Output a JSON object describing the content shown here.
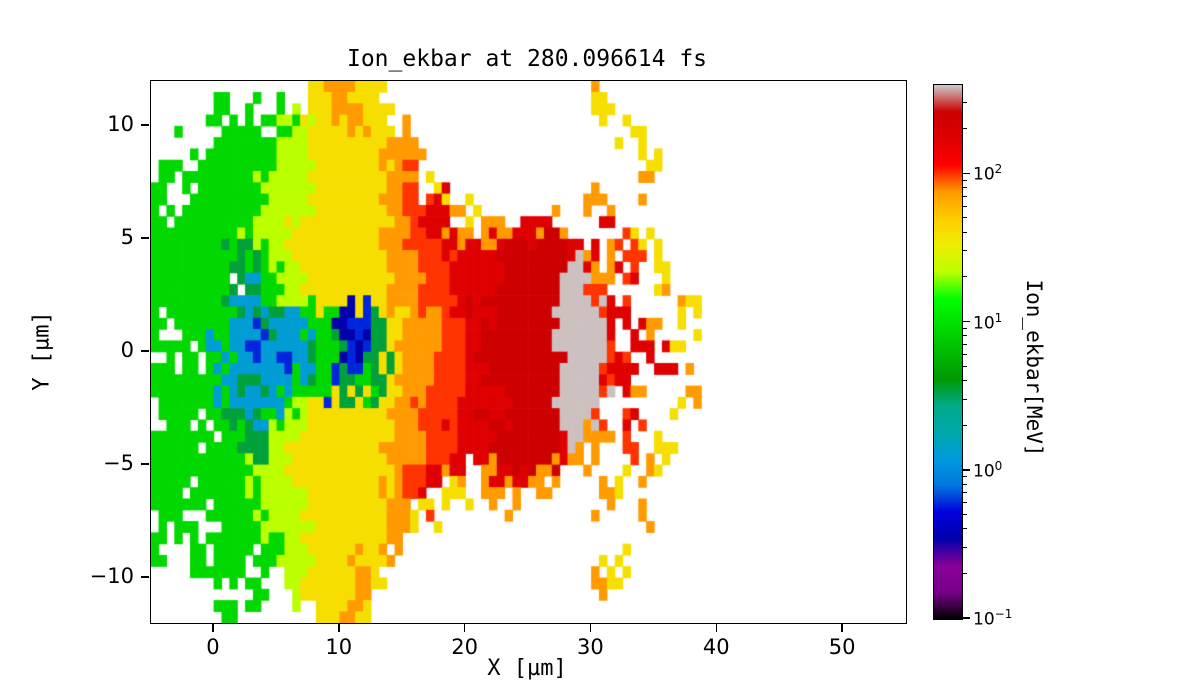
{
  "chart_data": {
    "type": "heatmap",
    "title": "Ion_ekbar at 280.096614 fs",
    "xlabel": "X [µm]",
    "ylabel": "Y [µm]",
    "x_range": [
      -5,
      55
    ],
    "y_range": [
      -12,
      12
    ],
    "x_ticks": [
      0,
      10,
      20,
      30,
      40,
      50
    ],
    "y_ticks": [
      -10,
      -5,
      0,
      5,
      10
    ],
    "grid_on": false,
    "legend": "none",
    "colorbar": {
      "label": "Ion_ekbar[MeV]",
      "scale": "log",
      "vmin": 0.1,
      "vmax": 400,
      "tick_exponents": [
        -1,
        0,
        1,
        2
      ],
      "colormap_name": "nipy_spectral",
      "colormap_stops": [
        [
          0.0,
          "#000000"
        ],
        [
          0.05,
          "#770088"
        ],
        [
          0.1,
          "#880099"
        ],
        [
          0.15,
          "#0000AA"
        ],
        [
          0.2,
          "#0000DD"
        ],
        [
          0.25,
          "#0077DD"
        ],
        [
          0.3,
          "#0099DD"
        ],
        [
          0.35,
          "#00AAAA"
        ],
        [
          0.4,
          "#00AA88"
        ],
        [
          0.45,
          "#009900"
        ],
        [
          0.5,
          "#00BB00"
        ],
        [
          0.55,
          "#00DD00"
        ],
        [
          0.6,
          "#00FF00"
        ],
        [
          0.65,
          "#BBFF00"
        ],
        [
          0.7,
          "#EEEE00"
        ],
        [
          0.75,
          "#FFCC00"
        ],
        [
          0.8,
          "#FF9900"
        ],
        [
          0.85,
          "#FF0000"
        ],
        [
          0.9,
          "#DD0000"
        ],
        [
          0.95,
          "#CC0000"
        ],
        [
          1.0,
          "#CCCCCC"
        ]
      ]
    },
    "grid": {
      "ncols": 48,
      "nrows": 24,
      "x_start": -5,
      "x_step": 1.25,
      "y_start": 12,
      "y_step": -1,
      "value_unit": "MeV",
      "cell_values": {
        ".": null,
        "d": 0.35,
        "b": 0.6,
        "c": 1.3,
        "t": 3.5,
        "g": 9,
        "G": 22,
        "y": 40,
        "o": 75,
        "O": 100,
        "r": 170,
        "R": 260,
        "s": 390
      },
      "rows": [
        "..........yooyy.............o...................",
        "....g.g.gGyyooy.............y...................",
        "..g.ggggGGyyyyyoo.............y.................",
        ".g.gggggGGyyyyyoo..............y................",
        "gg.ggggGGGyyyyyoO.y............o................",
        "g.gggggGGGyyyyyoOOr.y.......o...................",
        "ggggggGGGyyyyyyoOrro.oorro...r.y................",
        "gggggtgGGyyyyyyooOOrrrRRRRRro.O.y...............",
        "ggggg.tgGGyyyyyooOOrrrRRRRsso.r.y...............",
        "gggggtcgGGyyyyyooOOrRrRRRRssO.O..o..............",
        "g.gggcctccggdbtyooOOrrRRRRsssr.o..y.............",
        ".gggccbcccgtbdtyooOOrRRRRRsssr.r.y..............",
        "gg.ggcccbctgdbtyooOOrRRRRRsssOr.r...............",
        "ggggcctccggbtgtyooOOrrRRRRsssr.o..o.............",
        ".ggggtccgGyyyyyooOOrrRrRRRssO.r..y..............",
        "ggg.ggtgGGyyyyyooOOrrrRRRRsso.O.................",
        "ggggggtGGyyyyyyooOOrrrRRRRro..O.y...............",
        "ggggggGGGyyyyyyoOrro.orroo...y.o................",
        "gg.ggggGGGyyyyyoOO.y..o.....o...................",
        ".gg.gggGGGyyyyyo.y.............o................",
        "g.ggggggGGyyyyyo..............y.................",
        "..g.gg.gGGyyyoy..............y..................",
        "....g.g..Gyyyo..............o...................",
        ".....g.....yoy.................................."
      ]
    }
  }
}
